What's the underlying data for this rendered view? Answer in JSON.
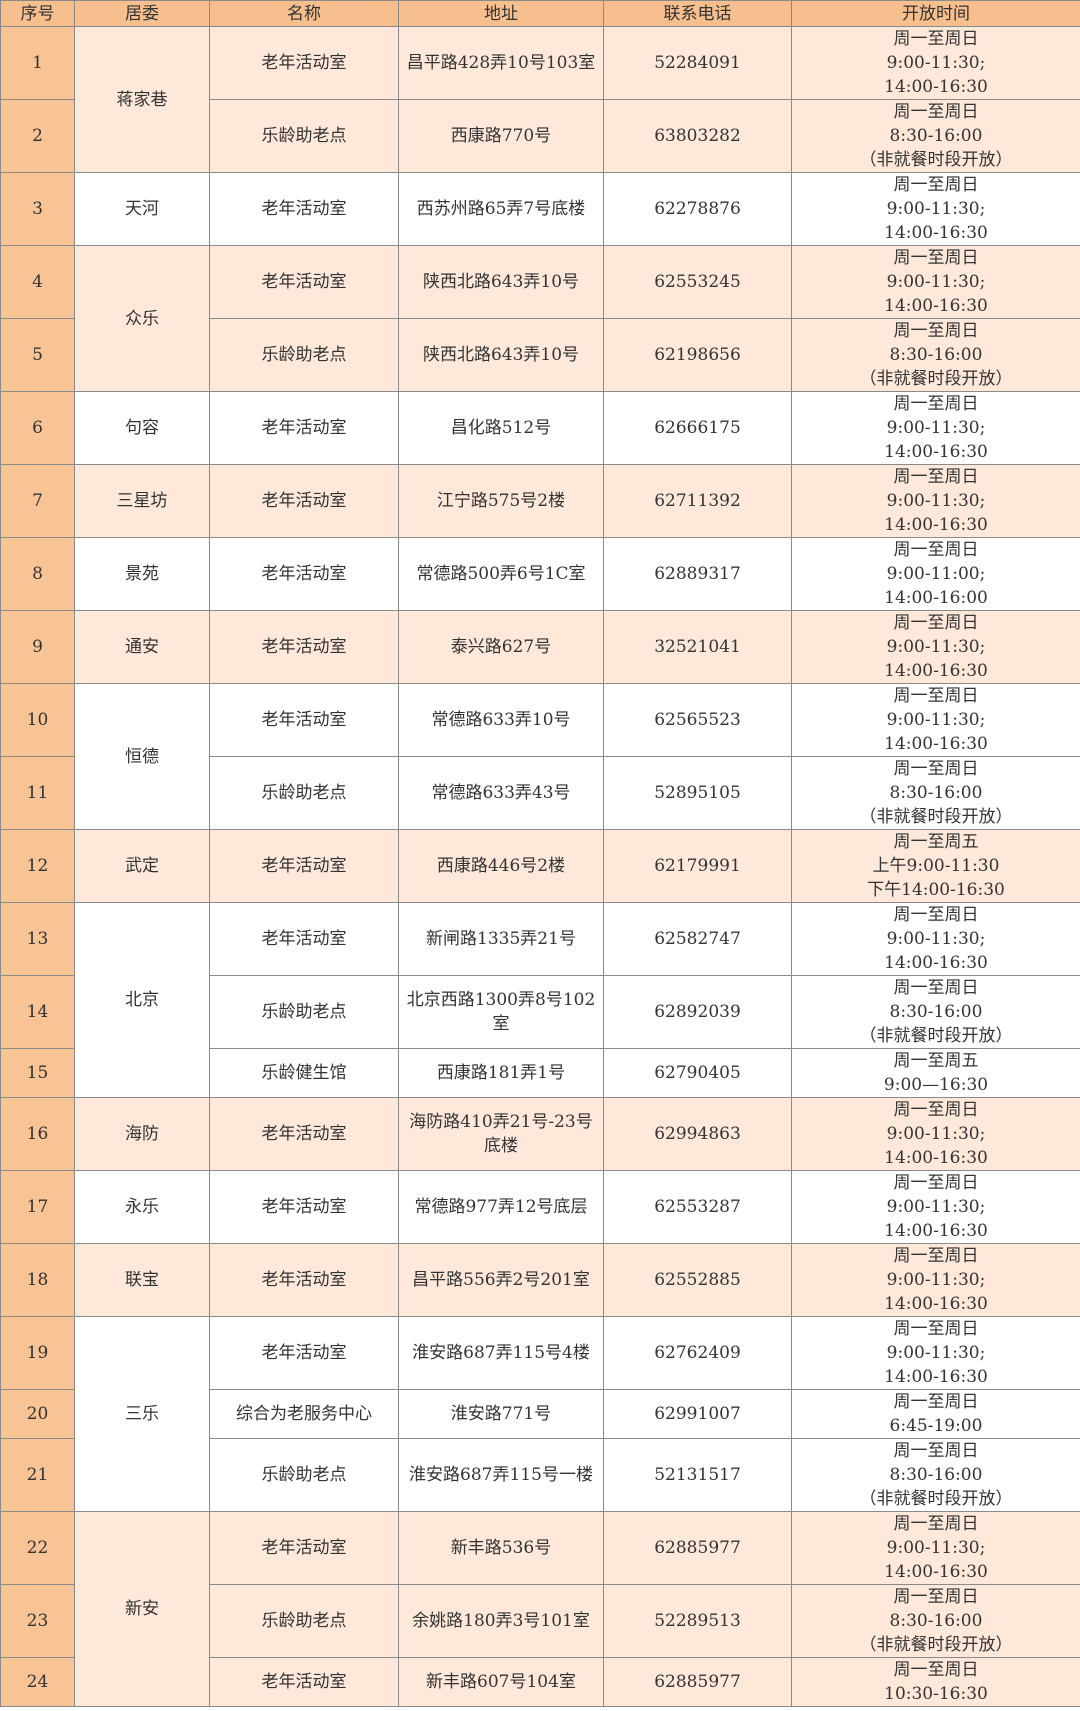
{
  "headers": [
    "序号",
    "居委",
    "名称",
    "地址",
    "联系电话",
    "开放时间"
  ],
  "colors": {
    "header": "#f7be8e",
    "seq_column": "#f8c395",
    "shaded_row": "#fde8da",
    "plain_row": "#ffffff"
  },
  "groups": [
    {
      "committee": "蒋家巷",
      "shaded": true,
      "rows": [
        {
          "no": "1",
          "name": "老年活动室",
          "address": "昌平路428弄10号103室",
          "phone": "52284091",
          "hours": [
            "周一至周日",
            "9:00-11:30;",
            "14:00-16:30"
          ]
        },
        {
          "no": "2",
          "name": "乐龄助老点",
          "address": "西康路770号",
          "phone": "63803282",
          "hours": [
            "周一至周日",
            "8:30-16:00",
            "（非就餐时段开放）"
          ]
        }
      ]
    },
    {
      "committee": "天河",
      "shaded": false,
      "rows": [
        {
          "no": "3",
          "name": "老年活动室",
          "address": "西苏州路65弄7号底楼",
          "phone": "62278876",
          "hours": [
            "周一至周日",
            "9:00-11:30;",
            "14:00-16:30"
          ]
        }
      ]
    },
    {
      "committee": "众乐",
      "shaded": true,
      "rows": [
        {
          "no": "4",
          "name": "老年活动室",
          "address": "陕西北路643弄10号",
          "phone": "62553245",
          "hours": [
            "周一至周日",
            "9:00-11:30;",
            "14:00-16:30"
          ]
        },
        {
          "no": "5",
          "name": "乐龄助老点",
          "address": "陕西北路643弄10号",
          "phone": "62198656",
          "hours": [
            "周一至周日",
            "8:30-16:00",
            "（非就餐时段开放）"
          ]
        }
      ]
    },
    {
      "committee": "句容",
      "shaded": false,
      "rows": [
        {
          "no": "6",
          "name": "老年活动室",
          "address": "昌化路512号",
          "phone": "62666175",
          "hours": [
            "周一至周日",
            "9:00-11:30;",
            "14:00-16:30"
          ]
        }
      ]
    },
    {
      "committee": "三星坊",
      "shaded": true,
      "rows": [
        {
          "no": "7",
          "name": "老年活动室",
          "address": "江宁路575号2楼",
          "phone": "62711392",
          "hours": [
            "周一至周日",
            "9:00-11:30;",
            "14:00-16:30"
          ]
        }
      ]
    },
    {
      "committee": "景苑",
      "shaded": false,
      "rows": [
        {
          "no": "8",
          "name": "老年活动室",
          "address": "常德路500弄6号1C室",
          "phone": "62889317",
          "hours": [
            "周一至周日",
            "9:00-11:00;",
            "14:00-16:00"
          ]
        }
      ]
    },
    {
      "committee": "通安",
      "shaded": true,
      "rows": [
        {
          "no": "9",
          "name": "老年活动室",
          "address": "泰兴路627号",
          "phone": "32521041",
          "hours": [
            "周一至周日",
            "9:00-11:30;",
            "14:00-16:30"
          ]
        }
      ]
    },
    {
      "committee": "恒德",
      "shaded": false,
      "rows": [
        {
          "no": "10",
          "name": "老年活动室",
          "address": "常德路633弄10号",
          "phone": "62565523",
          "hours": [
            "周一至周日",
            "9:00-11:30;",
            "14:00-16:30"
          ]
        },
        {
          "no": "11",
          "name": "乐龄助老点",
          "address": "常德路633弄43号",
          "phone": "52895105",
          "hours": [
            "周一至周日",
            "8:30-16:00",
            "（非就餐时段开放）"
          ]
        }
      ]
    },
    {
      "committee": "武定",
      "shaded": true,
      "rows": [
        {
          "no": "12",
          "name": "老年活动室",
          "address": "西康路446号2楼",
          "phone": "62179991",
          "hours": [
            "周一至周五",
            "上午9:00-11:30",
            "下午14:00-16:30"
          ]
        }
      ]
    },
    {
      "committee": "北京",
      "shaded": false,
      "rows": [
        {
          "no": "13",
          "name": "老年活动室",
          "address": "新闸路1335弄21号",
          "phone": "62582747",
          "hours": [
            "周一至周日",
            "9:00-11:30;",
            "14:00-16:30"
          ]
        },
        {
          "no": "14",
          "name": "乐龄助老点",
          "address": "北京西路1300弄8号102室",
          "phone": "62892039",
          "hours": [
            "周一至周日",
            "8:30-16:00",
            "（非就餐时段开放）"
          ]
        },
        {
          "no": "15",
          "name": "乐龄健生馆",
          "address": "西康路181弄1号",
          "phone": "62790405",
          "hours": [
            "周一至周五",
            "9:00—16:30"
          ]
        }
      ]
    },
    {
      "committee": "海防",
      "shaded": true,
      "rows": [
        {
          "no": "16",
          "name": "老年活动室",
          "address": "海防路410弄21号-23号底楼",
          "phone": "62994863",
          "hours": [
            "周一至周日",
            "9:00-11:30;",
            "14:00-16:30"
          ]
        }
      ]
    },
    {
      "committee": "永乐",
      "shaded": false,
      "rows": [
        {
          "no": "17",
          "name": "老年活动室",
          "address": "常德路977弄12号底层",
          "phone": "62553287",
          "hours": [
            "周一至周日",
            "9:00-11:30;",
            "14:00-16:30"
          ]
        }
      ]
    },
    {
      "committee": "联宝",
      "shaded": true,
      "rows": [
        {
          "no": "18",
          "name": "老年活动室",
          "address": "昌平路556弄2号201室",
          "phone": "62552885",
          "hours": [
            "周一至周日",
            "9:00-11:30;",
            "14:00-16:30"
          ]
        }
      ]
    },
    {
      "committee": "三乐",
      "shaded": false,
      "rows": [
        {
          "no": "19",
          "name": "老年活动室",
          "address": "淮安路687弄115号4楼",
          "phone": "62762409",
          "hours": [
            "周一至周日",
            "9:00-11:30;",
            "14:00-16:30"
          ]
        },
        {
          "no": "20",
          "name": "综合为老服务中心",
          "address": "淮安路771号",
          "phone": "62991007",
          "hours": [
            "周一至周日",
            "6:45-19:00"
          ]
        },
        {
          "no": "21",
          "name": "乐龄助老点",
          "address": "淮安路687弄115号一楼",
          "phone": "52131517",
          "hours": [
            "周一至周日",
            "8:30-16:00",
            "（非就餐时段开放）"
          ]
        }
      ]
    },
    {
      "committee": "新安",
      "shaded": true,
      "rows": [
        {
          "no": "22",
          "name": "老年活动室",
          "address": "新丰路536号",
          "phone": "62885977",
          "hours": [
            "周一至周日",
            "9:00-11:30;",
            "14:00-16:30"
          ]
        },
        {
          "no": "23",
          "name": "乐龄助老点",
          "address": "余姚路180弄3号101室",
          "phone": "52289513",
          "hours": [
            "周一至周日",
            "8:30-16:00",
            "（非就餐时段开放）"
          ]
        },
        {
          "no": "24",
          "name": "老年活动室",
          "address": "新丰路607号104室",
          "phone": "62885977",
          "hours": [
            "周一至周日",
            "10:30-16:30"
          ]
        }
      ]
    }
  ]
}
